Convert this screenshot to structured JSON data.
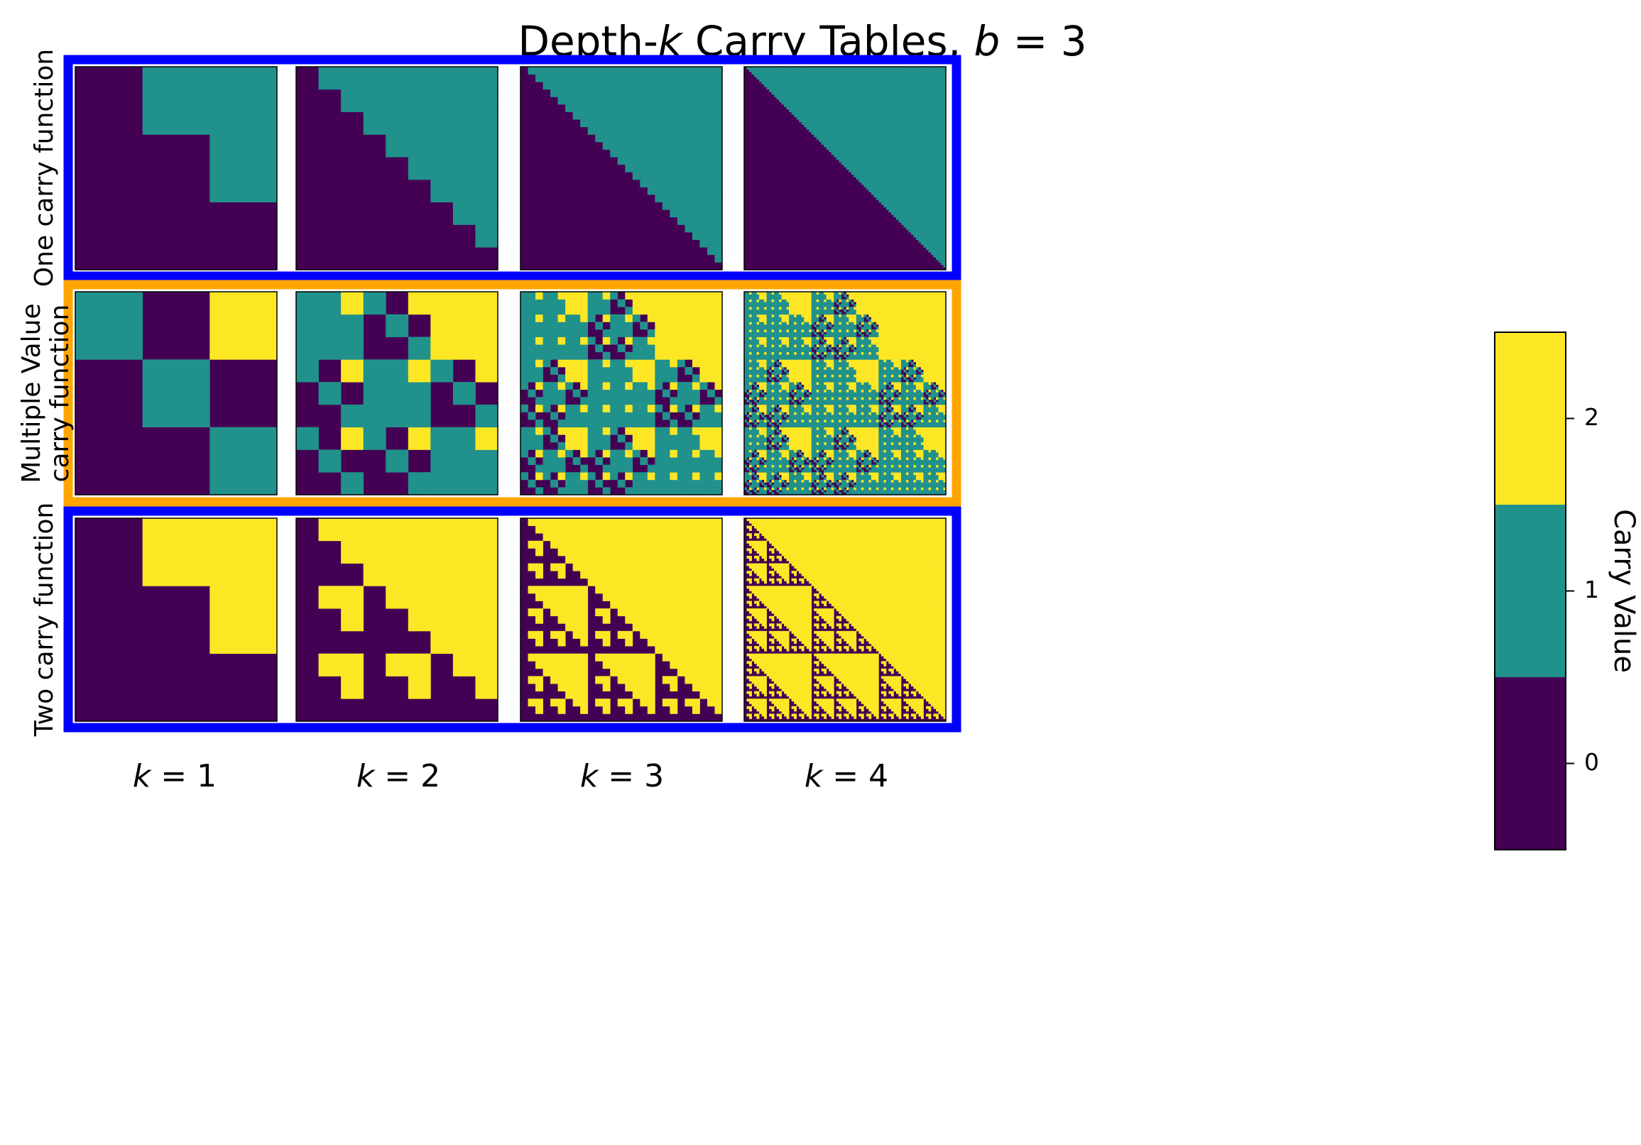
{
  "chart_data": {
    "type": "heatmap",
    "title": {
      "prefix": "Depth-",
      "k": "k",
      "middle": " Carry Tables, ",
      "b": "b",
      "suffix": " = 3"
    },
    "base": 3,
    "columns": [
      {
        "k": 1,
        "label_var": "k",
        "label_val": " = 1"
      },
      {
        "k": 2,
        "label_var": "k",
        "label_val": " = 2"
      },
      {
        "k": 3,
        "label_var": "k",
        "label_val": " = 3"
      },
      {
        "k": 4,
        "label_var": "k",
        "label_val": " = 4"
      }
    ],
    "rows": [
      {
        "id": "one",
        "label_lines": [
          "One carry function"
        ],
        "frame_color": "#0000ff"
      },
      {
        "id": "multi",
        "label_lines": [
          "Multiple Value",
          "carry function"
        ],
        "frame_color": "#ffa500"
      },
      {
        "id": "two",
        "label_lines": [
          "Two carry function"
        ],
        "frame_color": "#0000ff"
      }
    ],
    "colorbar": {
      "label": "Carry Value",
      "ticks": [
        "0",
        "1",
        "2"
      ],
      "values": [
        0,
        1,
        2
      ],
      "colors": {
        "0": "#440154",
        "1": "#21918c",
        "2": "#fde725"
      }
    },
    "grid_lines": false
  }
}
